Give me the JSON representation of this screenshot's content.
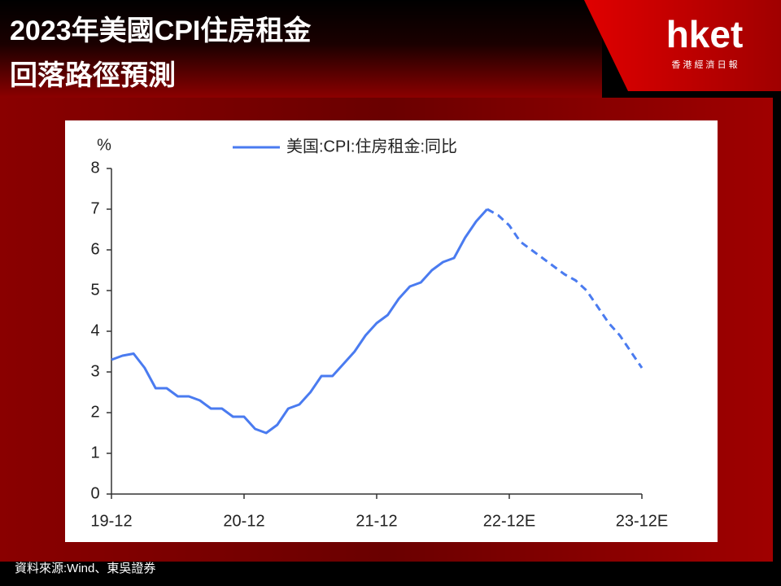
{
  "header": {
    "title_lines": [
      "2023年美國CPI住房租金",
      "回落路徑預測"
    ],
    "logo": "hket",
    "logo_sub": "香 港 經 濟 日 報"
  },
  "source": "資料來源:Wind、東吳證券",
  "chart_data": {
    "type": "line",
    "y_unit": "%",
    "legend": "top",
    "categories": [
      "19-12",
      null,
      null,
      null,
      null,
      null,
      null,
      null,
      null,
      null,
      null,
      null,
      "20-12",
      null,
      null,
      null,
      null,
      null,
      null,
      null,
      null,
      null,
      null,
      null,
      "21-12",
      null,
      null,
      null,
      null,
      null,
      null,
      null,
      null,
      null,
      null,
      null,
      "22-12E",
      null,
      null,
      null,
      null,
      null,
      null,
      null,
      null,
      null,
      null,
      null,
      "23-12E"
    ],
    "series": [
      {
        "name": "美国:CPI:住房租金:同比",
        "color": "#4a7bf0",
        "dashed": false,
        "values": [
          3.3,
          3.4,
          3.45,
          3.1,
          2.6,
          2.6,
          2.4,
          2.4,
          2.3,
          2.1,
          2.1,
          1.9,
          1.9,
          1.6,
          1.5,
          1.7,
          2.1,
          2.2,
          2.5,
          2.9,
          2.9,
          3.2,
          3.5,
          3.9,
          4.2,
          4.4,
          4.8,
          5.1,
          5.2,
          5.5,
          5.7,
          5.8,
          6.3,
          6.7,
          7.0,
          null,
          null,
          null,
          null,
          null,
          null,
          null,
          null,
          null,
          null,
          null,
          null,
          null,
          null
        ]
      },
      {
        "color": "#4a7bf0",
        "dashed": true,
        "values": [
          null,
          null,
          null,
          null,
          null,
          null,
          null,
          null,
          null,
          null,
          null,
          null,
          null,
          null,
          null,
          null,
          null,
          null,
          null,
          null,
          null,
          null,
          null,
          null,
          null,
          null,
          null,
          null,
          null,
          null,
          null,
          null,
          null,
          null,
          7.0,
          6.85,
          6.6,
          6.2,
          6.0,
          5.8,
          5.6,
          5.4,
          5.25,
          5.0,
          4.6,
          4.2,
          3.9,
          3.5,
          3.1
        ]
      }
    ],
    "ylim": [
      0,
      8
    ],
    "yticks": [
      0,
      1,
      2,
      3,
      4,
      5,
      6,
      7,
      8
    ],
    "grid": false
  }
}
